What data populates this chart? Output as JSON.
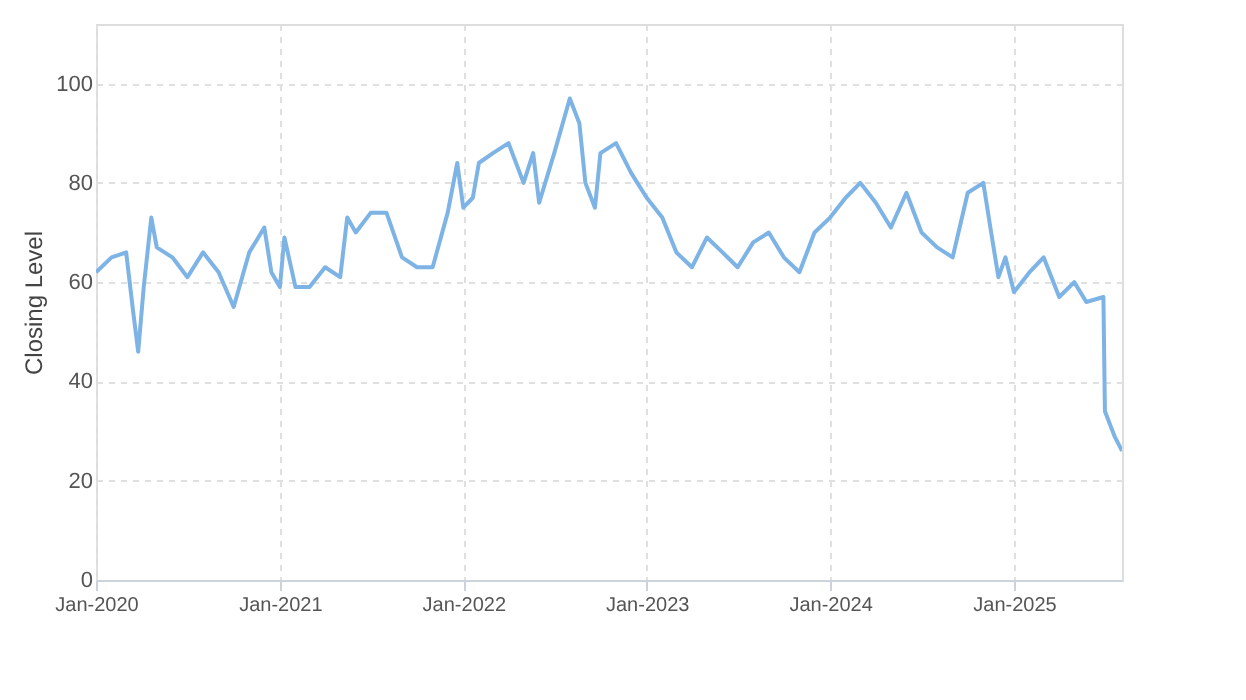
{
  "chart_data": {
    "type": "line",
    "ylabel": "Closing Level",
    "x": [
      "2020-01-01",
      "2020-02-01",
      "2020-03-01",
      "2020-03-15",
      "2020-03-25",
      "2020-04-05",
      "2020-04-20",
      "2020-05-01",
      "2020-06-01",
      "2020-07-01",
      "2020-08-01",
      "2020-09-01",
      "2020-10-01",
      "2020-11-01",
      "2020-12-01",
      "2020-12-15",
      "2021-01-01",
      "2021-01-10",
      "2021-02-01",
      "2021-03-01",
      "2021-04-01",
      "2021-05-01",
      "2021-05-15",
      "2021-06-01",
      "2021-07-01",
      "2021-08-01",
      "2021-09-01",
      "2021-10-01",
      "2021-11-01",
      "2021-12-01",
      "2021-12-20",
      "2022-01-01",
      "2022-01-20",
      "2022-02-01",
      "2022-03-01",
      "2022-04-01",
      "2022-05-01",
      "2022-05-20",
      "2022-06-01",
      "2022-07-01",
      "2022-08-01",
      "2022-08-20",
      "2022-09-01",
      "2022-09-20",
      "2022-10-01",
      "2022-11-01",
      "2022-12-01",
      "2023-01-01",
      "2023-02-01",
      "2023-03-01",
      "2023-04-01",
      "2023-05-01",
      "2023-06-01",
      "2023-07-01",
      "2023-08-01",
      "2023-09-01",
      "2023-10-01",
      "2023-11-01",
      "2023-12-01",
      "2024-01-01",
      "2024-02-01",
      "2024-03-01",
      "2024-04-01",
      "2024-05-01",
      "2024-06-01",
      "2024-07-01",
      "2024-08-01",
      "2024-09-01",
      "2024-10-01",
      "2024-11-01",
      "2024-11-15",
      "2024-12-01",
      "2024-12-15",
      "2025-01-01",
      "2025-02-01",
      "2025-03-01",
      "2025-04-01",
      "2025-05-01",
      "2025-05-25",
      "2025-06-28",
      "2025-07-01",
      "2025-07-20",
      "2025-08-04"
    ],
    "series": [
      {
        "color": "#7eb3e6",
        "values": [
          62,
          65,
          66,
          54,
          46,
          59,
          73,
          67,
          65,
          61,
          66,
          62,
          55,
          66,
          71,
          62,
          59,
          69,
          59,
          59,
          63,
          61,
          73,
          70,
          74,
          74,
          65,
          63,
          63,
          74,
          84,
          75,
          77,
          84,
          86,
          88,
          80,
          86,
          76,
          86,
          97,
          92,
          80,
          75,
          86,
          88,
          82,
          77,
          73,
          66,
          63,
          69,
          66,
          63,
          68,
          70,
          65,
          62,
          70,
          73,
          77,
          80,
          76,
          71,
          78,
          70,
          67,
          65,
          78,
          80,
          71,
          61,
          65,
          58,
          62,
          65,
          57,
          60,
          56,
          57,
          34,
          29,
          26
        ]
      }
    ],
    "xlim": [
      "2020-01-01",
      "2025-08-04"
    ],
    "xticks": [
      {
        "value": "2020-01-01",
        "label": "Jan-2020"
      },
      {
        "value": "2021-01-01",
        "label": "Jan-2021"
      },
      {
        "value": "2022-01-01",
        "label": "Jan-2022"
      },
      {
        "value": "2023-01-01",
        "label": "Jan-2023"
      },
      {
        "value": "2024-01-01",
        "label": "Jan-2024"
      },
      {
        "value": "2025-01-01",
        "label": "Jan-2025"
      }
    ],
    "ylim": [
      0,
      112
    ],
    "yticks": [
      0,
      20,
      40,
      60,
      80,
      100
    ],
    "grid": true,
    "marker": "none",
    "line_style": "solid"
  }
}
